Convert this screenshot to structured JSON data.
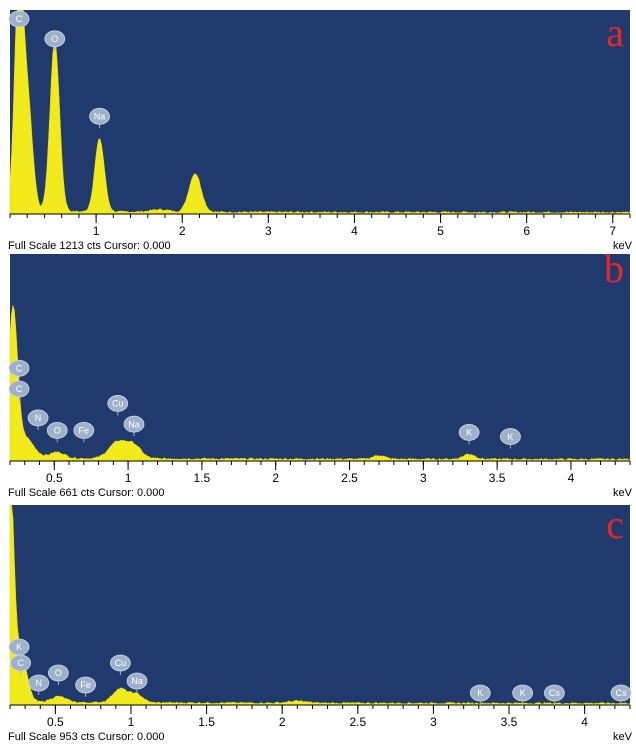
{
  "chart_data": [
    {
      "type": "area",
      "panel_label": "a",
      "xlabel": "keV",
      "xlim": [
        0,
        7.2
      ],
      "ticks": [
        1,
        2,
        3,
        4,
        5,
        6,
        7
      ],
      "full_scale_counts": 1213,
      "footer": "Full Scale 1213 cts Cursor: 0.000",
      "spectrum": {
        "x": [
          0.12,
          0.27,
          0.52,
          1.04,
          2.15
        ],
        "y": [
          1.0,
          0.08,
          0.85,
          0.37,
          0.2
        ]
      },
      "peaks": [
        {
          "element": "C",
          "energy": 0.1,
          "height": 0.97
        },
        {
          "element": "O",
          "energy": 0.52,
          "height": 0.8
        },
        {
          "element": "Na",
          "energy": 1.04,
          "height": 0.42
        }
      ]
    },
    {
      "type": "area",
      "panel_label": "b",
      "xlabel": "keV",
      "xlim": [
        0.2,
        4.4
      ],
      "ticks": [
        0.5,
        1,
        1.5,
        2,
        2.5,
        3,
        3.5,
        4
      ],
      "full_scale_counts": 661,
      "footer": "Full Scale 661 cts Cursor: 0.000",
      "spectrum": {
        "x": [
          0.22,
          1.0,
          2.7,
          3.3
        ],
        "y": [
          0.55,
          0.12,
          0.03,
          0.04
        ]
      },
      "peaks": [
        {
          "element": "C",
          "energy": 0.22,
          "height": 0.39
        },
        {
          "element": "C",
          "energy": 0.22,
          "height": 0.29
        },
        {
          "element": "N",
          "energy": 0.39,
          "height": 0.15
        },
        {
          "element": "O",
          "energy": 0.52,
          "height": 0.09
        },
        {
          "element": "Fe",
          "energy": 0.7,
          "height": 0.09
        },
        {
          "element": "Cu",
          "energy": 0.93,
          "height": 0.22
        },
        {
          "element": "Na",
          "energy": 1.04,
          "height": 0.12
        },
        {
          "element": "K",
          "energy": 3.31,
          "height": 0.08
        },
        {
          "element": "K",
          "energy": 3.59,
          "height": 0.06
        }
      ]
    },
    {
      "type": "area",
      "panel_label": "c",
      "xlabel": "keV",
      "xlim": [
        0.2,
        4.3
      ],
      "ticks": [
        0.5,
        1,
        1.5,
        2,
        2.5,
        3,
        3.5,
        4
      ],
      "full_scale_counts": 953,
      "footer": "Full Scale 953 cts Cursor: 0.000",
      "spectrum": {
        "x": [
          0.22,
          0.52,
          0.93,
          2.1
        ],
        "y": [
          1.0,
          0.06,
          0.1,
          0.02
        ]
      },
      "peaks": [
        {
          "element": "K",
          "energy": 0.26,
          "height": 0.23
        },
        {
          "element": "C",
          "energy": 0.27,
          "height": 0.15
        },
        {
          "element": "N",
          "energy": 0.39,
          "height": 0.05
        },
        {
          "element": "O",
          "energy": 0.52,
          "height": 0.1
        },
        {
          "element": "Fe",
          "energy": 0.7,
          "height": 0.04
        },
        {
          "element": "Cu",
          "energy": 0.93,
          "height": 0.15
        },
        {
          "element": "Na",
          "energy": 1.04,
          "height": 0.06
        },
        {
          "element": "K",
          "energy": 3.31,
          "height": 0.0
        },
        {
          "element": "K",
          "energy": 3.59,
          "height": 0.0
        },
        {
          "element": "Cs",
          "energy": 3.8,
          "height": 0.0
        },
        {
          "element": "Cs",
          "energy": 4.28,
          "height": 0.0
        }
      ]
    }
  ],
  "colors": {
    "plot_background": "#213a6e",
    "spectrum_fill": "#f2ea1a",
    "peak_badge": "#9fb0c9",
    "panel_letter": "#e8262a"
  }
}
